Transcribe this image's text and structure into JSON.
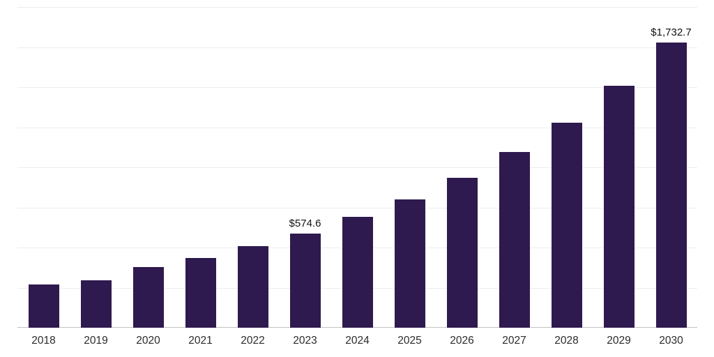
{
  "chart_data": {
    "type": "bar",
    "title": "",
    "xlabel": "",
    "ylabel": "",
    "categories": [
      "2018",
      "2019",
      "2020",
      "2021",
      "2022",
      "2023",
      "2024",
      "2025",
      "2026",
      "2027",
      "2028",
      "2029",
      "2030"
    ],
    "values": [
      264,
      289,
      370,
      426,
      498,
      574.6,
      673,
      779,
      911,
      1069,
      1247,
      1473,
      1732.7
    ],
    "annotations": {
      "2023": "$574.6",
      "2030": "$1,732.7"
    },
    "ylim": [
      0,
      1950
    ],
    "grid": true,
    "grid_intervals": 8,
    "legend": "none",
    "bar_color": "#2e1a4e",
    "gridline_color": "#ededed",
    "axis_line_color": "#c2c2c2",
    "label_color": "#2b2b2b",
    "annotation_color": "#111111"
  }
}
